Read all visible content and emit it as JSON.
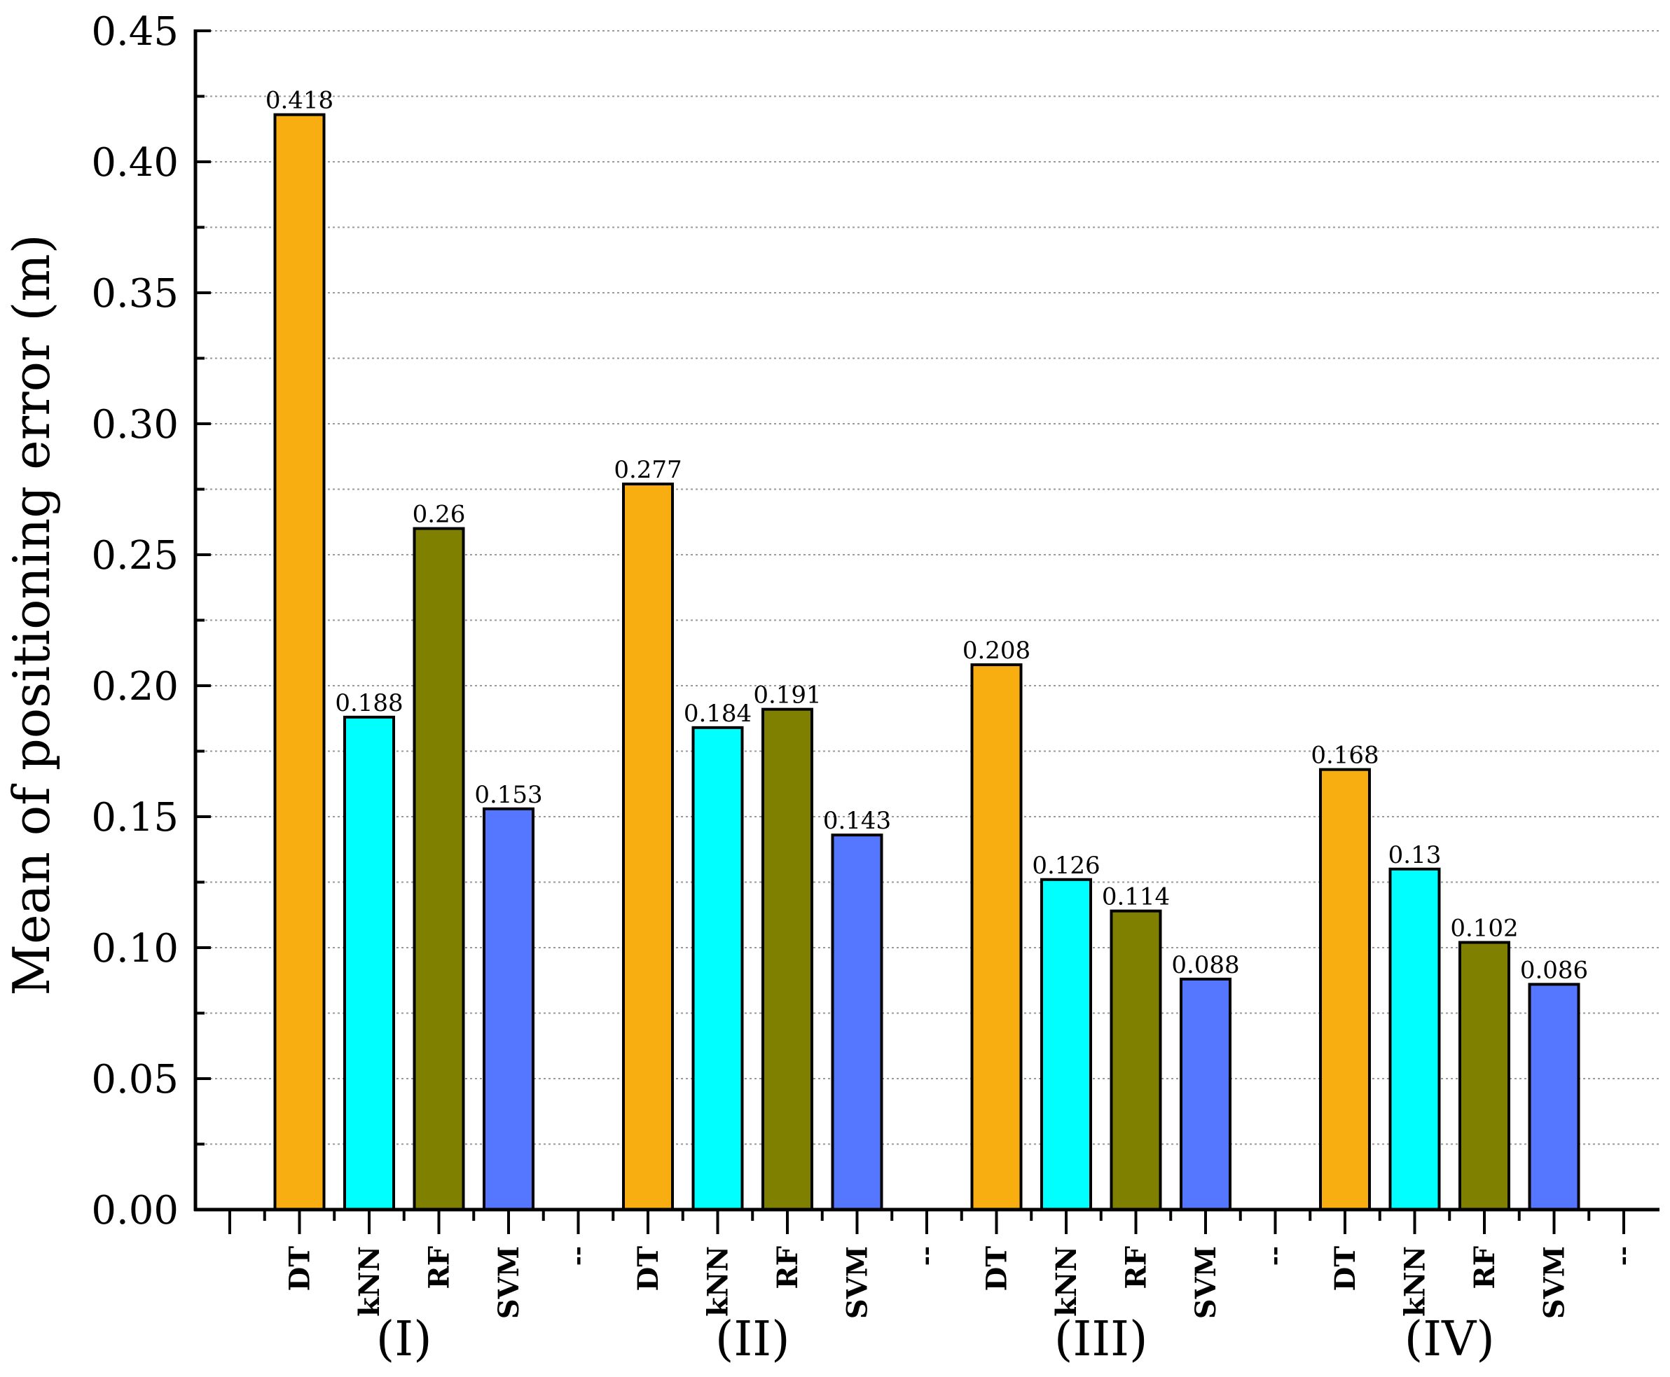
{
  "chart_data": {
    "type": "bar",
    "title": "",
    "ylabel": "Mean of positioning error (m)",
    "xlabel": "",
    "ylim": [
      0,
      0.45
    ],
    "yticks": [
      "0.00",
      "0.05",
      "0.10",
      "0.15",
      "0.20",
      "0.25",
      "0.30",
      "0.35",
      "0.40",
      "0.45"
    ],
    "grid": true,
    "groups": [
      {
        "label": "(I)",
        "bars": [
          {
            "name": "DT",
            "value": 0.418,
            "value_label": "0.418"
          },
          {
            "name": "kNN",
            "value": 0.188,
            "value_label": "0.188"
          },
          {
            "name": "RF",
            "value": 0.26,
            "value_label": "0.26"
          },
          {
            "name": "SVM",
            "value": 0.153,
            "value_label": "0.153"
          }
        ]
      },
      {
        "label": "(II)",
        "bars": [
          {
            "name": "DT",
            "value": 0.277,
            "value_label": "0.277"
          },
          {
            "name": "kNN",
            "value": 0.184,
            "value_label": "0.184"
          },
          {
            "name": "RF",
            "value": 0.191,
            "value_label": "0.191"
          },
          {
            "name": "SVM",
            "value": 0.143,
            "value_label": "0.143"
          }
        ]
      },
      {
        "label": "(III)",
        "bars": [
          {
            "name": "DT",
            "value": 0.208,
            "value_label": "0.208"
          },
          {
            "name": "kNN",
            "value": 0.126,
            "value_label": "0.126"
          },
          {
            "name": "RF",
            "value": 0.114,
            "value_label": "0.114"
          },
          {
            "name": "SVM",
            "value": 0.088,
            "value_label": "0.088"
          }
        ]
      },
      {
        "label": "(IV)",
        "bars": [
          {
            "name": "DT",
            "value": 0.168,
            "value_label": "0.168"
          },
          {
            "name": "kNN",
            "value": 0.13,
            "value_label": "0.13"
          },
          {
            "name": "RF",
            "value": 0.102,
            "value_label": "0.102"
          },
          {
            "name": "SVM",
            "value": 0.086,
            "value_label": "0.086"
          }
        ]
      }
    ],
    "separator_label": "--",
    "colors": {
      "DT": "#F8AE10",
      "kNN": "#00FFFF",
      "RF": "#808000",
      "SVM": "#5577FF",
      "grid": "#9a9a9a",
      "axis": "#000000"
    }
  }
}
